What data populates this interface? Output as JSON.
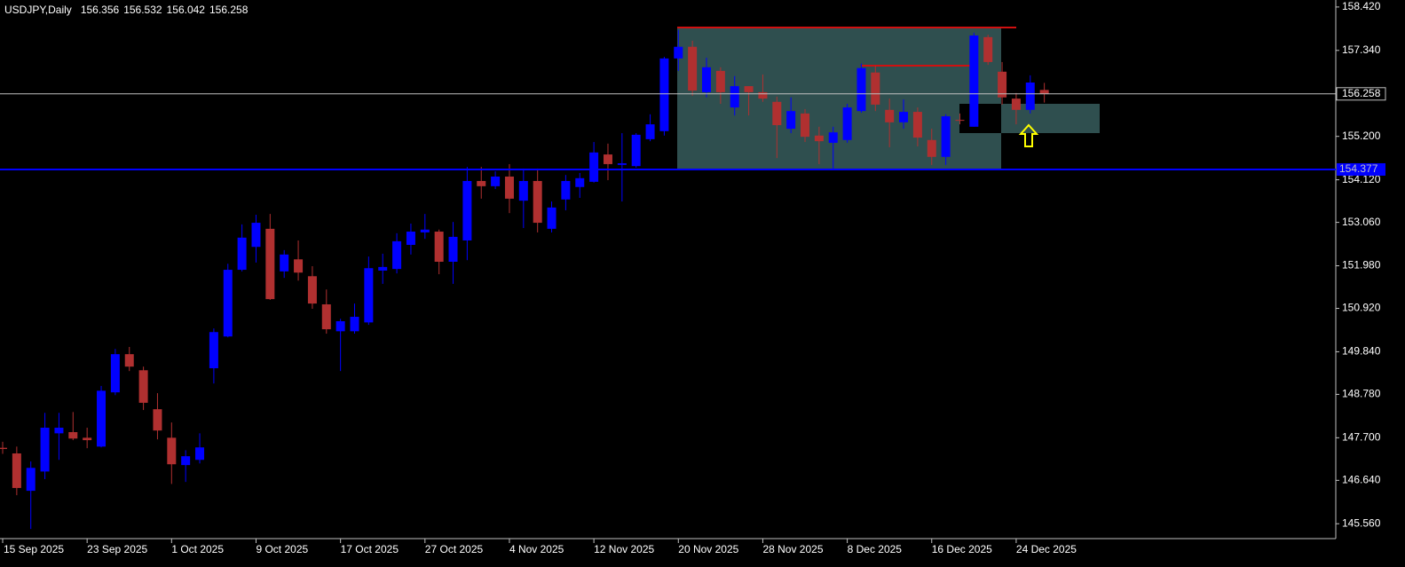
{
  "chart_data": {
    "type": "candlestick",
    "title": "USDJPY,Daily",
    "categories": [
      "15 Sep 2025",
      null,
      null,
      null,
      null,
      null,
      "23 Sep 2025",
      null,
      null,
      null,
      null,
      null,
      "1 Oct 2025",
      null,
      null,
      null,
      null,
      null,
      "9 Oct 2025",
      null,
      null,
      null,
      null,
      null,
      "17 Oct 2025",
      null,
      null,
      null,
      null,
      null,
      "27 Oct 2025",
      null,
      null,
      null,
      null,
      null,
      "4 Nov 2025",
      null,
      null,
      null,
      null,
      null,
      "12 Nov 2025",
      null,
      null,
      null,
      null,
      null,
      "20 Nov 2025",
      null,
      null,
      null,
      null,
      null,
      "28 Nov 2025",
      null,
      null,
      null,
      null,
      null,
      "8 Dec 2025",
      null,
      null,
      null,
      null,
      null,
      "16 Dec 2025",
      null,
      null,
      null,
      null,
      null,
      "24 Dec 2025",
      null,
      null
    ],
    "open": [
      147.45,
      147.31,
      146.38,
      146.86,
      147.81,
      147.84,
      147.7,
      147.48,
      148.83,
      149.78,
      149.38,
      148.41,
      147.7,
      147.02,
      147.15,
      149.43,
      150.22,
      151.88,
      152.45,
      152.9,
      151.84,
      152.14,
      151.72,
      151.02,
      150.35,
      150.35,
      150.57,
      151.86,
      151.9,
      152.5,
      152.81,
      152.83,
      152.08,
      152.61,
      154.09,
      153.96,
      154.2,
      153.6,
      154.09,
      152.9,
      153.63,
      153.94,
      154.07,
      154.75,
      154.49,
      154.46,
      155.13,
      155.33,
      157.14,
      157.43,
      156.3,
      156.83,
      155.92,
      156.45,
      156.3,
      156.06,
      155.39,
      155.77,
      155.22,
      155.04,
      155.11,
      155.83,
      156.79,
      155.86,
      155.55,
      155.81,
      155.11,
      154.69,
      155.61,
      155.44,
      157.67,
      156.81,
      156.14,
      155.86,
      156.356
    ],
    "high": [
      147.6,
      147.48,
      147.11,
      148.32,
      148.32,
      148.34,
      147.95,
      148.99,
      149.91,
      149.96,
      149.47,
      148.81,
      148.08,
      147.39,
      147.81,
      150.42,
      152.03,
      153.01,
      153.25,
      153.27,
      152.37,
      152.61,
      151.97,
      151.39,
      150.66,
      151.04,
      152.21,
      152.28,
      152.79,
      153.03,
      153.27,
      152.88,
      153.07,
      154.44,
      154.44,
      154.33,
      154.51,
      154.4,
      154.4,
      153.58,
      154.24,
      154.29,
      155.06,
      155.02,
      155.28,
      155.28,
      155.75,
      157.18,
      157.85,
      157.58,
      157.16,
      156.92,
      156.7,
      156.45,
      156.74,
      156.19,
      156.17,
      155.88,
      155.44,
      155.44,
      156.01,
      157.01,
      156.96,
      156.14,
      156.12,
      155.92,
      155.39,
      155.75,
      155.77,
      157.78,
      157.73,
      157.05,
      156.28,
      156.72,
      156.532
    ],
    "low": [
      147.3,
      146.27,
      145.43,
      146.67,
      147.15,
      147.64,
      147.44,
      147.46,
      148.76,
      149.36,
      148.39,
      147.66,
      146.55,
      146.6,
      147.06,
      149.05,
      150.2,
      151.84,
      152.06,
      151.13,
      151.68,
      151.61,
      150.91,
      150.29,
      149.36,
      150.29,
      150.51,
      151.53,
      151.79,
      152.26,
      152.65,
      151.77,
      151.53,
      152.12,
      153.65,
      153.89,
      153.29,
      152.92,
      152.81,
      152.81,
      153.36,
      153.67,
      154.05,
      154.11,
      153.58,
      154.42,
      155.08,
      155.22,
      156.83,
      156.21,
      156.17,
      156.01,
      155.72,
      155.72,
      156.06,
      154.66,
      155.28,
      155.06,
      154.51,
      154.4,
      155.04,
      155.79,
      155.83,
      154.93,
      155.39,
      154.95,
      154.49,
      154.49,
      155.5,
      155.44,
      156.98,
      155.99,
      155.5,
      155.77,
      156.042
    ],
    "close": [
      147.42,
      146.45,
      146.95,
      147.95,
      147.95,
      147.68,
      147.64,
      148.87,
      149.78,
      149.47,
      148.57,
      147.88,
      147.04,
      147.24,
      147.46,
      150.33,
      151.88,
      152.68,
      153.05,
      151.15,
      152.26,
      151.81,
      151.04,
      150.4,
      150.6,
      150.71,
      151.92,
      151.95,
      152.59,
      152.83,
      152.88,
      152.08,
      152.7,
      154.09,
      153.96,
      154.2,
      153.65,
      154.09,
      153.05,
      153.43,
      154.09,
      154.16,
      154.8,
      154.51,
      154.53,
      155.24,
      155.5,
      157.14,
      157.43,
      156.34,
      156.92,
      156.3,
      156.45,
      156.3,
      156.14,
      155.48,
      155.83,
      155.19,
      155.08,
      155.3,
      155.92,
      156.9,
      155.99,
      155.55,
      155.81,
      155.17,
      154.69,
      155.7,
      155.59,
      157.71,
      157.05,
      156.17,
      155.86,
      156.54,
      156.258
    ],
    "up_color": "#0000ff",
    "down_color": "#b03030",
    "ylim": [
      145.19,
      158.55
    ],
    "yticks": [
      {
        "value": 158.42,
        "label": "158.420"
      },
      {
        "value": 157.34,
        "label": "157.340"
      },
      {
        "value": 155.2,
        "label": "155.200"
      },
      {
        "value": 154.12,
        "label": "154.120"
      },
      {
        "value": 153.06,
        "label": "153.060"
      },
      {
        "value": 151.98,
        "label": "151.980"
      },
      {
        "value": 150.92,
        "label": "150.920"
      },
      {
        "value": 149.84,
        "label": "149.840"
      },
      {
        "value": 148.78,
        "label": "148.780"
      },
      {
        "value": 147.7,
        "label": "147.700"
      },
      {
        "value": 146.64,
        "label": "146.640"
      },
      {
        "value": 145.56,
        "label": "145.560"
      }
    ],
    "hlines": [
      {
        "value": 154.377,
        "color": "#0000ff"
      }
    ],
    "price_line_color": "#c0c0c0",
    "grid": false
  }
}
